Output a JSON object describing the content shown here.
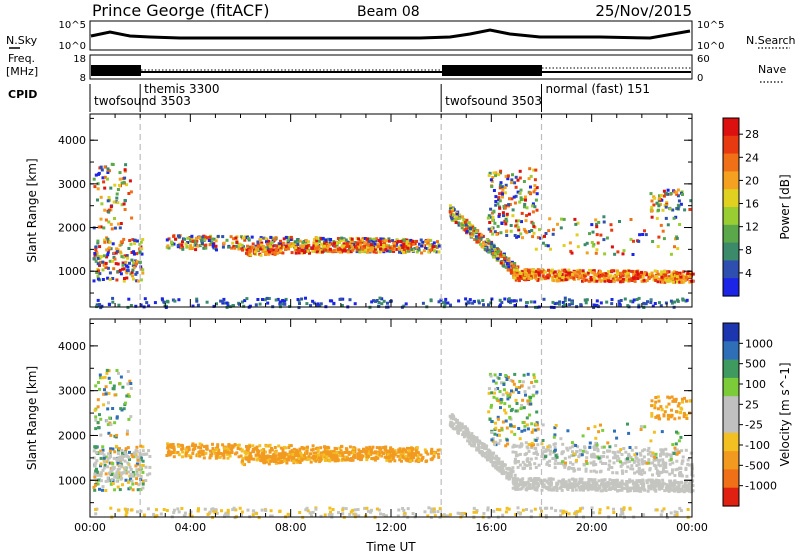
{
  "header": {
    "title": "Prince George (fitACF)",
    "beam": "Beam 08",
    "date": "25/Nov/2015"
  },
  "noise_panel": {
    "left_label": "N.Sky",
    "right_label": "N.Search",
    "left_ticks": [
      "10^5",
      "10^0"
    ],
    "right_ticks": [
      "10^5",
      "10^0"
    ]
  },
  "freq_panel": {
    "left_label_1": "Freq.",
    "left_label_2": "[MHz]",
    "left_ticks": [
      "18",
      "8"
    ],
    "right_label": "Nave",
    "right_ticks": [
      "60",
      "0"
    ]
  },
  "cpid": {
    "label": "CPID",
    "segments": [
      {
        "name": "twofsound 3503",
        "start_hour": 0
      },
      {
        "name": "themis 3300",
        "start_hour": 2
      },
      {
        "name": "twofsound 3503",
        "start_hour": 14
      },
      {
        "name": "normal (fast) 151",
        "start_hour": 18
      }
    ]
  },
  "chart_data": [
    {
      "type": "heatmap",
      "title": "",
      "xlabel": "Time UT",
      "ylabel": "Slant Range [km]",
      "xlim": [
        0,
        24
      ],
      "ylim": [
        180,
        4600
      ],
      "x_ticks": [
        "00:00",
        "04:00",
        "08:00",
        "12:00",
        "16:00",
        "20:00",
        "00:00"
      ],
      "y_ticks": [
        1000,
        2000,
        3000,
        4000
      ],
      "colorbar": {
        "label": "Power [dB]",
        "ticks": [
          "4",
          "8",
          "12",
          "16",
          "20",
          "24",
          "28"
        ],
        "colors": [
          "#1c24e6",
          "#2f4fb0",
          "#3b8a6a",
          "#5aa84a",
          "#9acd32",
          "#e0d020",
          "#f4a020",
          "#f07018",
          "#e83a10",
          "#dd1010"
        ]
      },
      "features": [
        {
          "region": "00:00-02:00 mixed echoes",
          "x": [
            0,
            2
          ],
          "range_km": [
            700,
            3500
          ],
          "power_db": "4-28"
        },
        {
          "region": "03:00-14:00 band",
          "x": [
            3,
            14
          ],
          "range_km": [
            1300,
            1900
          ],
          "power_db": "8-28"
        },
        {
          "region": "14:30-24:00 descending band",
          "x": [
            14.5,
            24
          ],
          "range_km": [
            800,
            2500
          ],
          "power_db": "16-30"
        },
        {
          "region": "near-range ground echoes",
          "x": [
            0,
            24
          ],
          "range_km": [
            180,
            450
          ],
          "power_db": "4-12"
        }
      ]
    },
    {
      "type": "heatmap",
      "title": "",
      "xlabel": "Time UT",
      "ylabel": "Slant Range [km]",
      "xlim": [
        0,
        24
      ],
      "ylim": [
        180,
        4600
      ],
      "x_ticks": [
        "00:00",
        "04:00",
        "08:00",
        "12:00",
        "16:00",
        "20:00",
        "00:00"
      ],
      "y_ticks": [
        1000,
        2000,
        3000,
        4000
      ],
      "colorbar": {
        "label": "Velocity [m s^-1]",
        "ticks": [
          "1000",
          "500",
          "100",
          "25",
          "-25",
          "-100",
          "-500",
          "-1000"
        ],
        "colors": [
          "#1c36b0",
          "#2f6fb8",
          "#3f9a60",
          "#7ccc3a",
          "#c0c0c0",
          "#c0c0c0",
          "#f2c020",
          "#f29a20",
          "#f07018",
          "#e02010"
        ]
      },
      "features": [
        {
          "region": "00:00-02:00 mixed",
          "x": [
            0,
            2
          ],
          "range_km": [
            700,
            3500
          ],
          "velocity": "-100 to 100"
        },
        {
          "region": "03:00-14:00 band",
          "x": [
            3,
            14
          ],
          "range_km": [
            1300,
            1900
          ],
          "velocity": "-500 to -100"
        },
        {
          "region": "14:30-24:00 ground scatter",
          "x": [
            14.5,
            24
          ],
          "range_km": [
            700,
            2300
          ],
          "velocity": "-25 to 25"
        }
      ]
    }
  ]
}
